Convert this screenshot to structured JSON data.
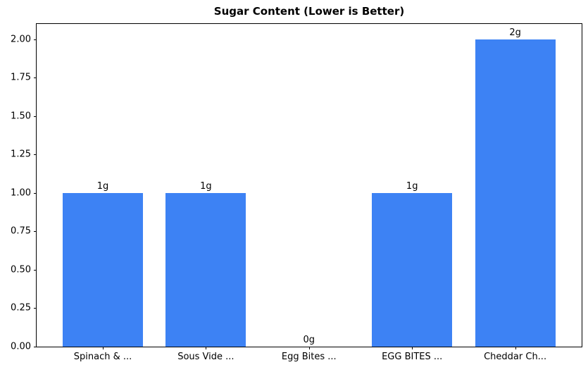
{
  "title": "Sugar Content (Lower is Better)",
  "colors": {
    "bar": "#3d82f4",
    "axis": "#000000",
    "background": "#ffffff",
    "text": "#000000"
  },
  "chart_data": {
    "type": "bar",
    "title": "Sugar Content (Lower is Better)",
    "categories": [
      "Spinach & ...",
      "Sous Vide ...",
      "Egg Bites ...",
      "EGG BITES ...",
      "Cheddar Ch..."
    ],
    "values": [
      1,
      1,
      0,
      1,
      2
    ],
    "bar_labels": [
      "1g",
      "1g",
      "0g",
      "1g",
      "2g"
    ],
    "xlabel": "",
    "ylabel": "",
    "ylim": [
      0,
      2.1
    ],
    "yticks": [
      "0.00",
      "0.25",
      "0.50",
      "0.75",
      "1.00",
      "1.25",
      "1.50",
      "1.75",
      "2.00"
    ],
    "grid": false,
    "legend": null
  }
}
